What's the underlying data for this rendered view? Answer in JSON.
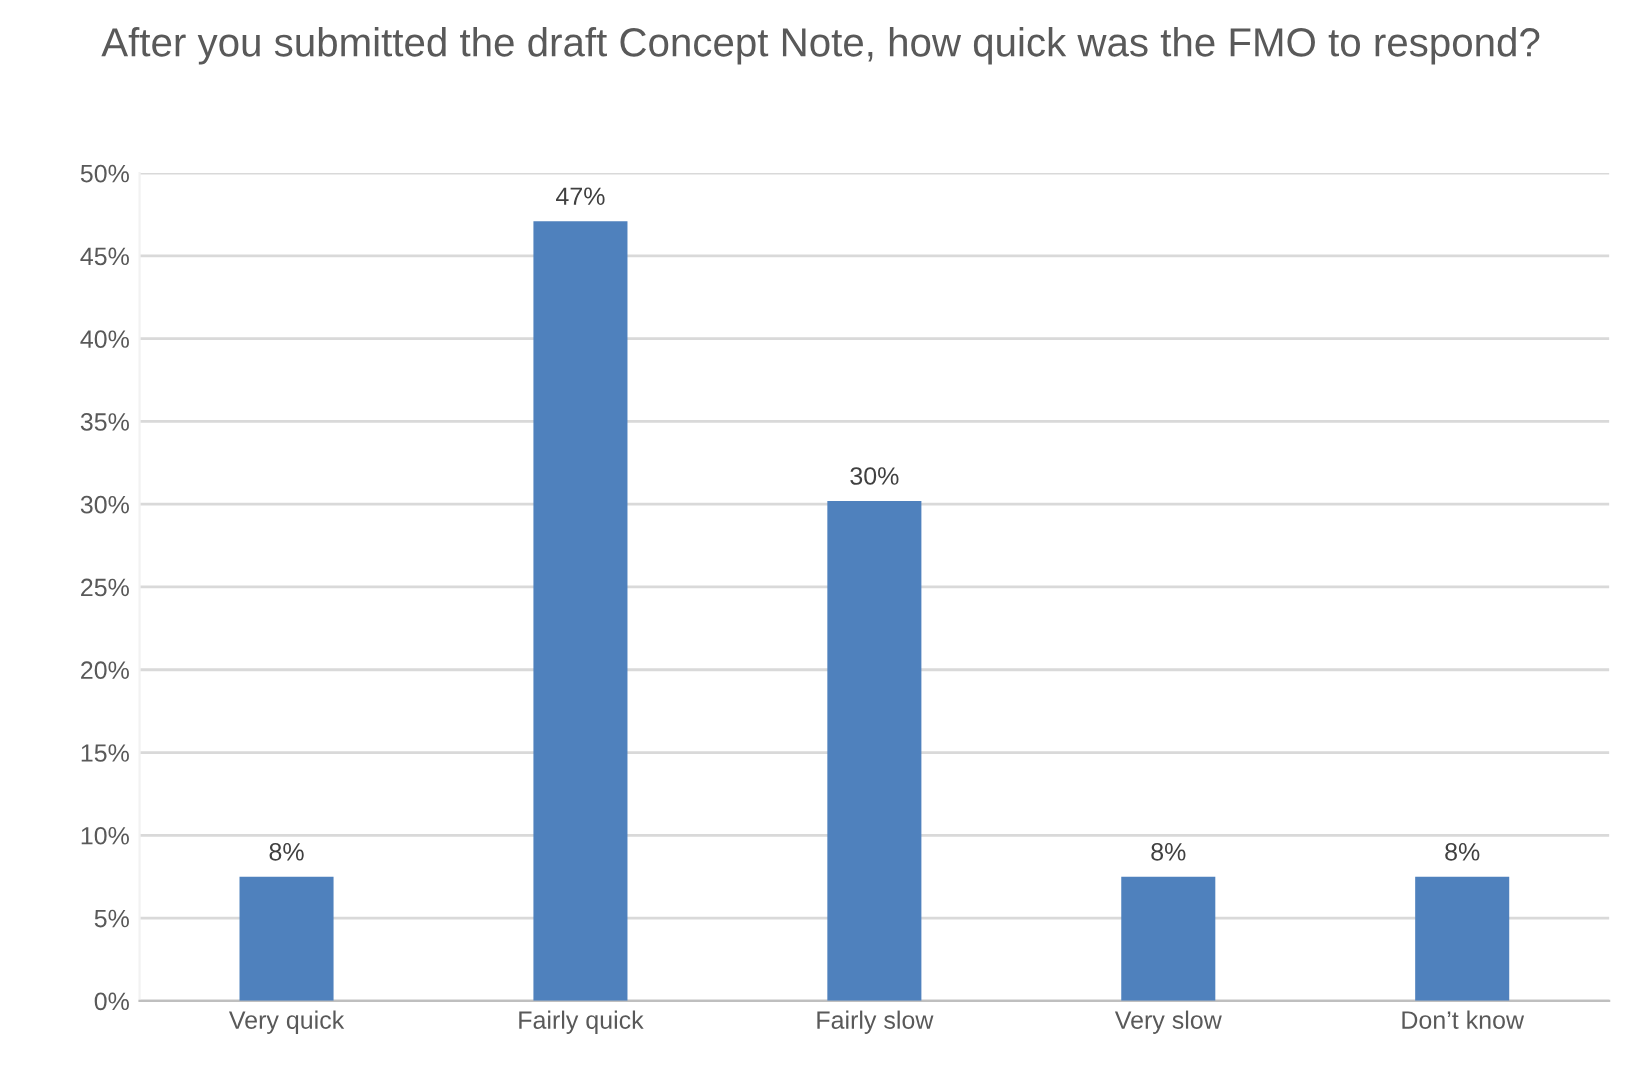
{
  "chart_data": {
    "type": "bar",
    "title": "After you submitted the draft Concept Note, how quick was the FMO to respond?",
    "categories": [
      "Very quick",
      "Fairly quick",
      "Fairly slow",
      "Very slow",
      "Don’t know"
    ],
    "values": [
      7.5,
      47.1,
      30.2,
      7.5,
      7.5
    ],
    "value_labels": [
      "8%",
      "47%",
      "30%",
      "8%",
      "8%"
    ],
    "color": "#4f81bd",
    "ylim": [
      0,
      50
    ],
    "yticks": [
      {
        "value": 0,
        "label": "0%"
      },
      {
        "value": 5,
        "label": "5%"
      },
      {
        "value": 10,
        "label": "10%"
      },
      {
        "value": 15,
        "label": "15%"
      },
      {
        "value": 20,
        "label": "20%"
      },
      {
        "value": 25,
        "label": "25%"
      },
      {
        "value": 30,
        "label": "30%"
      },
      {
        "value": 35,
        "label": "35%"
      },
      {
        "value": 40,
        "label": "40%"
      },
      {
        "value": 45,
        "label": "45%"
      },
      {
        "value": 50,
        "label": "50%"
      }
    ],
    "grid": "y"
  }
}
